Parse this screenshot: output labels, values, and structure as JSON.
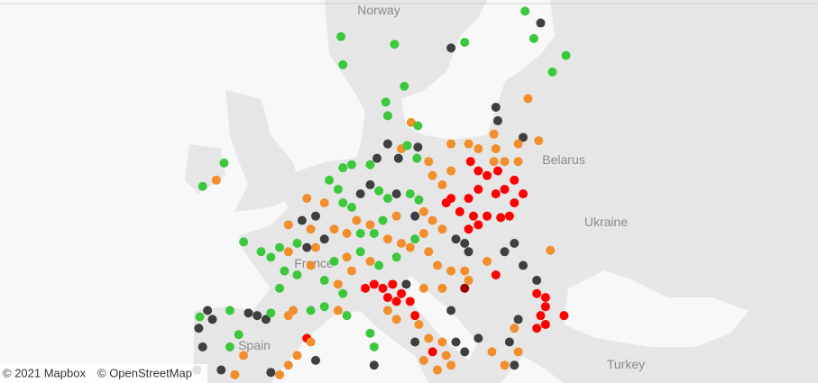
{
  "map": {
    "labels": {
      "norway": "Norway",
      "belarus": "Belarus",
      "ukraine": "Ukraine",
      "france": "France",
      "spain": "Spain",
      "turkey": "Turkey"
    },
    "attribution": [
      "© 2021 Mapbox",
      "© OpenStreetMap"
    ],
    "palette": [
      "#3cc83c",
      "#f28e2b",
      "#ff0000",
      "#3f3f3f",
      "#9b0000"
    ],
    "points": [
      [
        24.0,
        61.8,
        0
      ],
      [
        25.6,
        61.2,
        3
      ],
      [
        5.1,
        60.5,
        0
      ],
      [
        10.6,
        60.1,
        0
      ],
      [
        17.8,
        60.2,
        0
      ],
      [
        16.4,
        59.9,
        3
      ],
      [
        24.9,
        60.4,
        0
      ],
      [
        28.2,
        59.5,
        0
      ],
      [
        5.3,
        59.0,
        0
      ],
      [
        26.8,
        58.6,
        0
      ],
      [
        11.6,
        57.8,
        0
      ],
      [
        9.7,
        56.9,
        0
      ],
      [
        9.9,
        56.1,
        0
      ],
      [
        24.3,
        57.1,
        1
      ],
      [
        21.0,
        56.6,
        3
      ],
      [
        21.2,
        55.8,
        3
      ],
      [
        12.3,
        55.7,
        1
      ],
      [
        13.0,
        55.5,
        0
      ],
      [
        20.8,
        55.0,
        1
      ],
      [
        23.8,
        54.8,
        3
      ],
      [
        25.4,
        54.6,
        1
      ],
      [
        -6.9,
        53.2,
        0
      ],
      [
        -7.7,
        52.1,
        1
      ],
      [
        -9.1,
        51.7,
        0
      ],
      [
        9.9,
        54.4,
        3
      ],
      [
        11.3,
        54.1,
        1
      ],
      [
        11.9,
        54.3,
        0
      ],
      [
        13.0,
        54.2,
        3
      ],
      [
        8.8,
        53.5,
        3
      ],
      [
        11.0,
        53.5,
        3
      ],
      [
        12.9,
        53.5,
        0
      ],
      [
        8.1,
        53.1,
        0
      ],
      [
        6.2,
        53.1,
        0
      ],
      [
        5.3,
        52.9,
        0
      ],
      [
        16.4,
        54.4,
        1
      ],
      [
        18.2,
        54.4,
        1
      ],
      [
        19.2,
        54.1,
        1
      ],
      [
        21.0,
        54.1,
        1
      ],
      [
        18.4,
        53.3,
        2
      ],
      [
        19.2,
        52.7,
        2
      ],
      [
        20.1,
        52.4,
        2
      ],
      [
        20.8,
        53.3,
        1
      ],
      [
        21.2,
        52.7,
        2
      ],
      [
        21.9,
        53.3,
        1
      ],
      [
        23.3,
        53.3,
        1
      ],
      [
        23.3,
        54.4,
        1
      ],
      [
        22.9,
        52.1,
        2
      ],
      [
        21.9,
        51.5,
        2
      ],
      [
        23.8,
        51.2,
        2
      ],
      [
        21.0,
        51.2,
        2
      ],
      [
        19.2,
        51.5,
        2
      ],
      [
        18.2,
        50.9,
        2
      ],
      [
        16.4,
        50.9,
        2
      ],
      [
        15.9,
        50.6,
        2
      ],
      [
        17.3,
        50.0,
        2
      ],
      [
        18.7,
        49.7,
        2
      ],
      [
        20.1,
        49.7,
        2
      ],
      [
        21.5,
        49.6,
        2
      ],
      [
        22.4,
        49.7,
        2
      ],
      [
        22.9,
        50.6,
        2
      ],
      [
        18.2,
        48.8,
        2
      ],
      [
        19.2,
        49.1,
        2
      ],
      [
        15.5,
        51.8,
        1
      ],
      [
        14.5,
        52.4,
        1
      ],
      [
        14.1,
        53.3,
        1
      ],
      [
        16.4,
        52.7,
        1
      ],
      [
        16.9,
        48.1,
        3
      ],
      [
        17.8,
        47.8,
        3
      ],
      [
        3.9,
        52.1,
        0
      ],
      [
        4.8,
        51.5,
        0
      ],
      [
        3.4,
        50.6,
        1
      ],
      [
        1.6,
        50.9,
        1
      ],
      [
        2.5,
        49.7,
        3
      ],
      [
        2.0,
        48.8,
        1
      ],
      [
        1.1,
        49.4,
        3
      ],
      [
        -0.3,
        49.1,
        1
      ],
      [
        5.3,
        50.6,
        0
      ],
      [
        6.2,
        50.3,
        0
      ],
      [
        7.1,
        51.2,
        3
      ],
      [
        8.1,
        51.8,
        3
      ],
      [
        9.0,
        51.4,
        0
      ],
      [
        9.9,
        50.9,
        0
      ],
      [
        10.8,
        51.2,
        3
      ],
      [
        12.2,
        51.2,
        0
      ],
      [
        13.1,
        50.8,
        0
      ],
      [
        13.6,
        50.0,
        1
      ],
      [
        12.7,
        49.7,
        3
      ],
      [
        10.8,
        49.7,
        1
      ],
      [
        9.4,
        49.4,
        0
      ],
      [
        8.1,
        49.1,
        1
      ],
      [
        7.1,
        48.5,
        0
      ],
      [
        8.5,
        48.5,
        0
      ],
      [
        9.9,
        48.1,
        1
      ],
      [
        11.3,
        47.8,
        1
      ],
      [
        12.7,
        48.1,
        0
      ],
      [
        13.6,
        48.5,
        1
      ],
      [
        14.5,
        49.4,
        1
      ],
      [
        15.5,
        48.8,
        1
      ],
      [
        6.7,
        49.4,
        1
      ],
      [
        5.7,
        48.5,
        1
      ],
      [
        4.4,
        48.8,
        1
      ],
      [
        3.4,
        48.1,
        3
      ],
      [
        2.5,
        47.5,
        1
      ],
      [
        1.6,
        47.5,
        3
      ],
      [
        0.6,
        47.8,
        0
      ],
      [
        -0.3,
        47.2,
        1
      ],
      [
        -1.2,
        47.5,
        0
      ],
      [
        -2.1,
        46.8,
        0
      ],
      [
        -3.1,
        47.2,
        0
      ],
      [
        -4.9,
        47.9,
        0
      ],
      [
        -0.7,
        45.8,
        0
      ],
      [
        0.6,
        45.5,
        0
      ],
      [
        2.0,
        46.2,
        1
      ],
      [
        4.4,
        46.5,
        0
      ],
      [
        5.7,
        46.8,
        1
      ],
      [
        7.1,
        47.2,
        0
      ],
      [
        8.1,
        46.5,
        1
      ],
      [
        9.0,
        46.2,
        0
      ],
      [
        10.8,
        46.8,
        0
      ],
      [
        12.2,
        47.5,
        1
      ],
      [
        3.4,
        45.1,
        0
      ],
      [
        4.8,
        44.8,
        1
      ],
      [
        5.3,
        44.1,
        0
      ],
      [
        6.2,
        45.8,
        1
      ],
      [
        -1.2,
        44.5,
        0
      ],
      [
        0.2,
        42.8,
        1
      ],
      [
        2.0,
        42.8,
        0
      ],
      [
        3.4,
        43.1,
        0
      ],
      [
        4.8,
        42.8,
        1
      ],
      [
        5.7,
        42.4,
        0
      ],
      [
        7.6,
        44.5,
        2
      ],
      [
        8.5,
        44.8,
        2
      ],
      [
        9.4,
        44.5,
        2
      ],
      [
        10.4,
        44.8,
        2
      ],
      [
        11.3,
        44.1,
        2
      ],
      [
        11.8,
        44.8,
        3
      ],
      [
        10.8,
        43.5,
        2
      ],
      [
        9.9,
        43.8,
        2
      ],
      [
        12.2,
        43.5,
        2
      ],
      [
        12.7,
        42.4,
        2
      ],
      [
        13.1,
        41.7,
        1
      ],
      [
        14.1,
        40.6,
        1
      ],
      [
        15.5,
        40.3,
        1
      ],
      [
        14.5,
        39.5,
        2
      ],
      [
        15.9,
        39.2,
        1
      ],
      [
        16.4,
        38.4,
        1
      ],
      [
        15.0,
        38.0,
        1
      ],
      [
        13.6,
        38.8,
        1
      ],
      [
        12.7,
        40.3,
        3
      ],
      [
        10.8,
        42.1,
        1
      ],
      [
        9.9,
        42.8,
        1
      ],
      [
        13.6,
        44.5,
        1
      ],
      [
        15.5,
        44.5,
        1
      ],
      [
        16.4,
        45.8,
        1
      ],
      [
        15.0,
        46.2,
        1
      ],
      [
        14.1,
        47.2,
        1
      ],
      [
        17.8,
        44.5,
        4
      ],
      [
        17.8,
        45.8,
        1
      ],
      [
        18.2,
        47.2,
        3
      ],
      [
        18.2,
        45.1,
        1
      ],
      [
        20.1,
        46.5,
        1
      ],
      [
        21.0,
        45.5,
        2
      ],
      [
        21.9,
        47.2,
        3
      ],
      [
        22.9,
        47.8,
        3
      ],
      [
        23.8,
        46.2,
        3
      ],
      [
        25.2,
        45.1,
        3
      ],
      [
        25.2,
        44.1,
        2
      ],
      [
        26.1,
        43.8,
        2
      ],
      [
        26.1,
        43.1,
        2
      ],
      [
        25.6,
        42.4,
        2
      ],
      [
        26.1,
        41.7,
        2
      ],
      [
        25.2,
        41.4,
        2
      ],
      [
        28.0,
        42.4,
        2
      ],
      [
        26.6,
        47.3,
        1
      ],
      [
        23.3,
        42.1,
        3
      ],
      [
        22.9,
        41.4,
        1
      ],
      [
        22.4,
        40.3,
        3
      ],
      [
        23.3,
        39.5,
        1
      ],
      [
        21.9,
        38.4,
        1
      ],
      [
        20.6,
        39.5,
        1
      ],
      [
        19.2,
        40.6,
        3
      ],
      [
        16.9,
        40.3,
        3
      ],
      [
        16.4,
        42.8,
        3
      ],
      [
        17.8,
        39.5,
        3
      ],
      [
        22.9,
        38.4,
        3
      ],
      [
        -9.4,
        42.3,
        0
      ],
      [
        -8.6,
        42.8,
        3
      ],
      [
        -8.1,
        42.1,
        3
      ],
      [
        -9.5,
        41.4,
        3
      ],
      [
        -9.1,
        39.9,
        3
      ],
      [
        -6.3,
        42.8,
        0
      ],
      [
        -4.4,
        42.6,
        3
      ],
      [
        -3.5,
        42.4,
        3
      ],
      [
        -2.6,
        42.1,
        3
      ],
      [
        -2.1,
        42.6,
        0
      ],
      [
        -0.3,
        42.4,
        1
      ],
      [
        1.6,
        40.6,
        2
      ],
      [
        2.0,
        40.3,
        1
      ],
      [
        2.5,
        38.8,
        3
      ],
      [
        0.6,
        39.2,
        1
      ],
      [
        -0.3,
        38.4,
        1
      ],
      [
        -1.2,
        37.6,
        1
      ],
      [
        -2.1,
        37.8,
        3
      ],
      [
        -5.4,
        40.9,
        0
      ],
      [
        -6.3,
        39.9,
        0
      ],
      [
        -7.2,
        38.0,
        3
      ],
      [
        -4.9,
        39.2,
        1
      ],
      [
        -5.8,
        37.6,
        1
      ],
      [
        -9.7,
        38.0,
        3
      ],
      [
        8.5,
        39.9,
        0
      ],
      [
        8.5,
        38.4,
        3
      ],
      [
        8.1,
        41.0,
        0
      ]
    ]
  }
}
